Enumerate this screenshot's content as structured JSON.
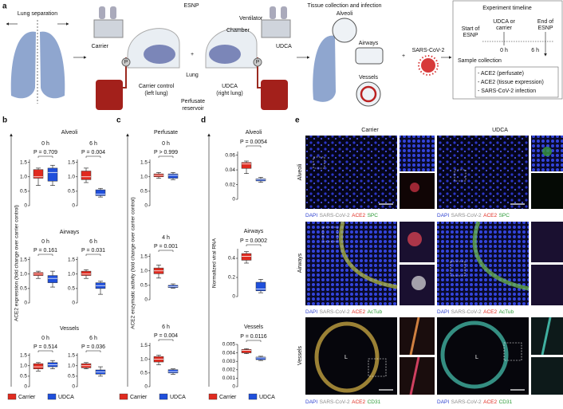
{
  "panel_a": {
    "label": "a",
    "lung_separation": "Lung separation",
    "esnp": "ESNP",
    "ventilator": "Ventilator",
    "chamber": "Chamber",
    "lung": "Lung",
    "carrier": "Carrier",
    "pump_left": "P",
    "pump_right": "P",
    "plus": "+",
    "udca": "UDCA",
    "carrier_control": [
      "Carrier control",
      "(left lung)"
    ],
    "udca_lung": [
      "UDCA",
      "(right lung)"
    ],
    "reservoir": [
      "Perfusate",
      "reservoir"
    ],
    "tissue_title": "Tissue collection and infection",
    "alveoli": "Alveoli",
    "airways": "Airways",
    "vessels": "Vessels",
    "plus_2": "+",
    "virus": "SARS-CoV-2",
    "timeline": {
      "title": "Experiment timeline",
      "start": [
        "Start of",
        "ESNP"
      ],
      "treatment": [
        "UDCA or",
        "carrier"
      ],
      "end": [
        "End of",
        "ESNP"
      ],
      "t0": "0 h",
      "t6": "6 h",
      "sample_collection": "Sample collection",
      "samples": [
        "- ACE2 (perfusate)",
        "- ACE2 (tissue expression)",
        "- SARS-CoV-2 infection"
      ]
    }
  },
  "panels": {
    "b": {
      "label": "b",
      "ylabel": "ACE2 expression (fold change over carrier control)",
      "groups": [
        "Alveoli",
        "Airways",
        "Vessels"
      ]
    },
    "c": {
      "label": "c",
      "ylabel": "ACE2 enzymatic activity (fold change over carrier control)",
      "group": "Perfusate"
    },
    "d": {
      "label": "d",
      "ylabel": "Normalized viral RNA"
    }
  },
  "panel_e": {
    "label": "e",
    "columns": [
      "Carrier",
      "UDCA"
    ],
    "rows": [
      {
        "name": "Alveoli",
        "stains": [
          "DAPI",
          "SARS-CoV-2",
          "ACE2",
          "SPC"
        ]
      },
      {
        "name": "Airways",
        "stains": [
          "DAPI",
          "SARS-CoV-2",
          "ACE2",
          "AcTub"
        ]
      },
      {
        "name": "Vessels",
        "stains": [
          "DAPI",
          "SARS-CoV-2",
          "ACE2",
          "CD31"
        ],
        "lumen": [
          "L",
          "L"
        ]
      }
    ]
  },
  "chart_data": [
    {
      "type": "box",
      "title": "0 h",
      "annotation": "P = 0.709",
      "ylim": [
        0,
        1.6
      ],
      "yticks": [
        0,
        0.5,
        {
          "value": 1,
          "label": "1.0"
        },
        1.5
      ],
      "series": [
        {
          "name": "Carrier",
          "color": "#e02a1f",
          "min": 0.7,
          "q1": 0.95,
          "median": 1.0,
          "q3": 1.25,
          "max": 1.3
        },
        {
          "name": "UDCA",
          "color": "#1f4fdb",
          "min": 0.7,
          "q1": 0.85,
          "median": 1.15,
          "q3": 1.3,
          "max": 1.4
        }
      ]
    },
    {
      "type": "box",
      "title": "6 h",
      "annotation": "P = 0.004",
      "ylim": [
        0,
        1.6
      ],
      "yticks": [
        0,
        0.5,
        {
          "value": 1,
          "label": "1.0"
        },
        1.5
      ],
      "series": [
        {
          "name": "Carrier",
          "color": "#e02a1f",
          "min": 0.8,
          "q1": 0.9,
          "median": 1.0,
          "q3": 1.2,
          "max": 1.3
        },
        {
          "name": "UDCA",
          "color": "#1f4fdb",
          "min": 0.3,
          "q1": 0.35,
          "median": 0.4,
          "q3": 0.55,
          "max": 0.6
        }
      ]
    },
    {
      "type": "box",
      "title": "0 h",
      "annotation": "P = 0.161",
      "ylim": [
        0,
        1.6
      ],
      "yticks": [
        0,
        0.5,
        {
          "value": 1,
          "label": "1.0"
        },
        1.5
      ],
      "series": [
        {
          "name": "Carrier",
          "color": "#e02a1f",
          "min": 0.85,
          "q1": 0.95,
          "median": 1.0,
          "q3": 1.05,
          "max": 1.1
        },
        {
          "name": "UDCA",
          "color": "#1f4fdb",
          "min": 0.55,
          "q1": 0.7,
          "median": 0.85,
          "q3": 0.95,
          "max": 1.1
        }
      ]
    },
    {
      "type": "box",
      "title": "6 h",
      "annotation": "P = 0.031",
      "ylim": [
        0,
        1.6
      ],
      "yticks": [
        0,
        0.5,
        {
          "value": 1,
          "label": "1.0"
        },
        1.5
      ],
      "series": [
        {
          "name": "Carrier",
          "color": "#e02a1f",
          "min": 0.85,
          "q1": 0.95,
          "median": 1.0,
          "q3": 1.1,
          "max": 1.15
        },
        {
          "name": "UDCA",
          "color": "#1f4fdb",
          "min": 0.3,
          "q1": 0.5,
          "median": 0.6,
          "q3": 0.7,
          "max": 0.75
        }
      ]
    },
    {
      "type": "box",
      "title": "0 h",
      "annotation": "P = 0.514",
      "ylim": [
        0,
        1.6
      ],
      "yticks": [
        0,
        0.5,
        {
          "value": 1,
          "label": "1.0"
        },
        1.5
      ],
      "series": [
        {
          "name": "Carrier",
          "color": "#e02a1f",
          "min": 0.75,
          "q1": 0.85,
          "median": 0.95,
          "q3": 1.1,
          "max": 1.15
        },
        {
          "name": "UDCA",
          "color": "#1f4fdb",
          "min": 0.85,
          "q1": 0.95,
          "median": 1.05,
          "q3": 1.15,
          "max": 1.25
        }
      ]
    },
    {
      "type": "box",
      "title": "6 h",
      "annotation": "P = 0.036",
      "ylim": [
        0,
        1.6
      ],
      "yticks": [
        0,
        0.5,
        {
          "value": 1,
          "label": "1.0"
        },
        1.5
      ],
      "series": [
        {
          "name": "Carrier",
          "color": "#e02a1f",
          "min": 0.85,
          "q1": 0.9,
          "median": 1.0,
          "q3": 1.1,
          "max": 1.15
        },
        {
          "name": "UDCA",
          "color": "#1f4fdb",
          "min": 0.5,
          "q1": 0.6,
          "median": 0.7,
          "q3": 0.8,
          "max": 0.95
        }
      ]
    },
    {
      "type": "box",
      "title": "0 h",
      "annotation": "P > 0.999",
      "ylim": [
        0,
        1.6
      ],
      "yticks": [
        0,
        0.5,
        {
          "value": 1,
          "label": "1.0"
        },
        1.5
      ],
      "series": [
        {
          "name": "Carrier",
          "color": "#e02a1f",
          "min": 0.95,
          "q1": 1.0,
          "median": 1.05,
          "q3": 1.1,
          "max": 1.15
        },
        {
          "name": "UDCA",
          "color": "#1f4fdb",
          "min": 0.9,
          "q1": 0.95,
          "median": 1.05,
          "q3": 1.1,
          "max": 1.15
        }
      ]
    },
    {
      "type": "box",
      "title": "4 h",
      "annotation": "P = 0.001",
      "ylim": [
        0,
        1.6
      ],
      "yticks": [
        0,
        0.5,
        {
          "value": 1,
          "label": "1.0"
        },
        1.5
      ],
      "series": [
        {
          "name": "Carrier",
          "color": "#e02a1f",
          "min": 0.75,
          "q1": 0.9,
          "median": 1.0,
          "q3": 1.1,
          "max": 1.2
        },
        {
          "name": "UDCA",
          "color": "#1f4fdb",
          "min": 0.4,
          "q1": 0.42,
          "median": 0.45,
          "q3": 0.5,
          "max": 0.55
        }
      ]
    },
    {
      "type": "box",
      "title": "6 h",
      "annotation": "P = 0.004",
      "ylim": [
        0,
        1.6
      ],
      "yticks": [
        0,
        0.5,
        {
          "value": 1,
          "label": "1.0"
        },
        1.5
      ],
      "series": [
        {
          "name": "Carrier",
          "color": "#e02a1f",
          "min": 0.8,
          "q1": 0.9,
          "median": 1.0,
          "q3": 1.1,
          "max": 1.15
        },
        {
          "name": "UDCA",
          "color": "#1f4fdb",
          "min": 0.45,
          "q1": 0.5,
          "median": 0.55,
          "q3": 0.62,
          "max": 0.65
        }
      ]
    },
    {
      "type": "box",
      "title": "Alveoli",
      "annotation": "P = 0.0054",
      "ylim": [
        0,
        0.065
      ],
      "yticks": [
        0,
        0.02,
        0.04,
        0.06
      ],
      "series": [
        {
          "name": "Carrier",
          "color": "#e02a1f",
          "min": 0.035,
          "q1": 0.042,
          "median": 0.048,
          "q3": 0.05,
          "max": 0.052
        },
        {
          "name": "UDCA",
          "color": "#1f4fdb",
          "min": 0.023,
          "q1": 0.025,
          "median": 0.027,
          "q3": 0.028,
          "max": 0.03
        }
      ]
    },
    {
      "type": "box",
      "title": "Airways",
      "annotation": "P = 0.0002",
      "ylim": [
        0,
        0.5
      ],
      "yticks": [
        0,
        0.2,
        0.4
      ],
      "series": [
        {
          "name": "Carrier",
          "color": "#e02a1f",
          "min": 0.35,
          "q1": 0.38,
          "median": 0.42,
          "q3": 0.45,
          "max": 0.47
        },
        {
          "name": "UDCA",
          "color": "#1f4fdb",
          "min": 0.04,
          "q1": 0.06,
          "median": 0.08,
          "q3": 0.15,
          "max": 0.18
        }
      ]
    },
    {
      "type": "box",
      "title": "Vessels",
      "annotation": "P = 0.0116",
      "ylim": [
        0,
        0.005
      ],
      "yticks": [
        0,
        0.001,
        0.002,
        0.003,
        0.004,
        0.005
      ],
      "series": [
        {
          "name": "Carrier",
          "color": "#e02a1f",
          "min": 0.0039,
          "q1": 0.004,
          "median": 0.0043,
          "q3": 0.0044,
          "max": 0.0045
        },
        {
          "name": "UDCA",
          "color": "#1f4fdb",
          "min": 0.0031,
          "q1": 0.0032,
          "median": 0.0034,
          "q3": 0.0035,
          "max": 0.0036
        }
      ]
    }
  ]
}
